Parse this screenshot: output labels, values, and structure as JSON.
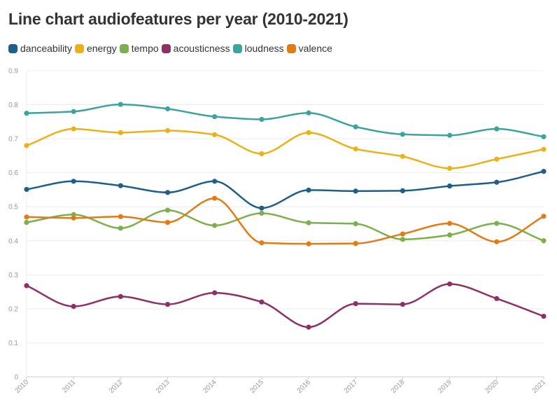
{
  "chart_data": {
    "type": "line",
    "title": "Line chart audiofeatures per year (2010-2021)",
    "xlabel": "",
    "ylabel": "",
    "x": [
      "2010",
      "2011",
      "2012",
      "2013",
      "2014",
      "2015",
      "2016",
      "2017",
      "2018",
      "2019",
      "2020",
      "2021"
    ],
    "ylim": [
      0,
      0.9
    ],
    "yticks": [
      "0",
      "0.1",
      "0.2",
      "0.3",
      "0.4",
      "0.5",
      "0.6",
      "0.7",
      "0.8",
      "0.9"
    ],
    "grid": true,
    "legend_position": "top-left",
    "series": [
      {
        "name": "danceability",
        "color": "#1d5f8a",
        "values": [
          0.551,
          0.575,
          0.562,
          0.542,
          0.575,
          0.496,
          0.549,
          0.546,
          0.547,
          0.561,
          0.572,
          0.604
        ]
      },
      {
        "name": "energy",
        "color": "#ebb118",
        "values": [
          0.68,
          0.729,
          0.718,
          0.724,
          0.712,
          0.656,
          0.718,
          0.67,
          0.648,
          0.613,
          0.64,
          0.669
        ]
      },
      {
        "name": "tempo",
        "color": "#7bb04a",
        "values": [
          0.454,
          0.477,
          0.437,
          0.49,
          0.445,
          0.481,
          0.453,
          0.45,
          0.404,
          0.417,
          0.451,
          0.4
        ]
      },
      {
        "name": "acousticness",
        "color": "#8e2f65",
        "values": [
          0.268,
          0.207,
          0.236,
          0.213,
          0.247,
          0.22,
          0.146,
          0.215,
          0.213,
          0.273,
          0.23,
          0.178
        ]
      },
      {
        "name": "loudness",
        "color": "#3ca39e",
        "values": [
          0.775,
          0.78,
          0.801,
          0.788,
          0.765,
          0.757,
          0.776,
          0.735,
          0.713,
          0.71,
          0.729,
          0.706
        ]
      },
      {
        "name": "valence",
        "color": "#e07b16",
        "values": [
          0.47,
          0.467,
          0.471,
          0.454,
          0.525,
          0.394,
          0.391,
          0.392,
          0.42,
          0.451,
          0.397,
          0.472
        ]
      }
    ]
  }
}
